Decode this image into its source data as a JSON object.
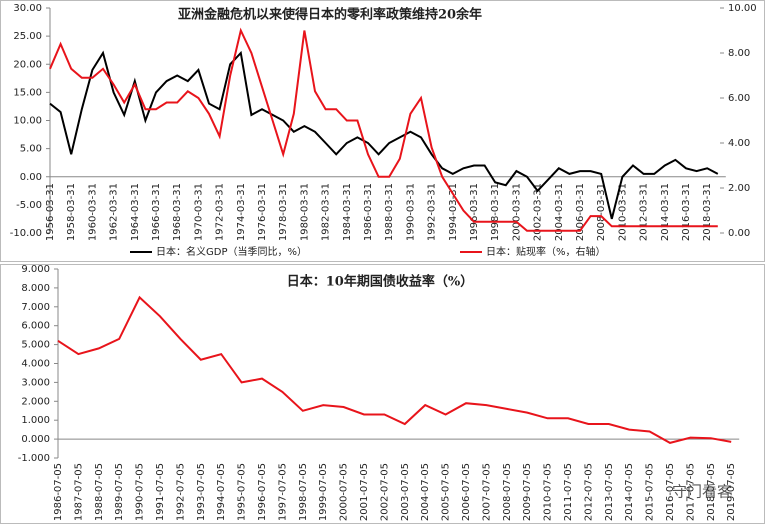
{
  "chart_data": [
    {
      "type": "line",
      "title": "亚洲金融危机以来使得日本的零利率政策维持20余年",
      "categories": [
        "1956-03-31",
        null,
        "1958-03-31",
        null,
        "1960-03-31",
        null,
        "1962-03-31",
        null,
        "1964-03-31",
        null,
        "1966-03-31",
        null,
        "1968-03-31",
        null,
        "1970-03-31",
        null,
        "1972-03-31",
        null,
        "1974-03-31",
        null,
        "1976-03-31",
        null,
        "1978-03-31",
        null,
        "1980-03-31",
        null,
        "1982-03-31",
        null,
        "1984-03-31",
        null,
        "1986-03-31",
        null,
        "1988-03-31",
        null,
        "1990-03-31",
        null,
        "1992-03-31",
        null,
        "1994-03-31",
        null,
        "1996-03-31",
        null,
        "1998-03-31",
        null,
        "2000-03-31",
        null,
        "2002-03-31",
        null,
        "2004-03-31",
        null,
        "2006-03-31",
        null,
        "2008-03-31",
        null,
        "2010-03-31",
        null,
        "2012-03-31",
        null,
        "2014-03-31",
        null,
        "2016-03-31",
        null,
        "2018-03-31",
        null
      ],
      "series": [
        {
          "name": "日本：名义GDP（当季同比，%）",
          "color": "#000000",
          "values": [
            13,
            11.5,
            4,
            12,
            19,
            22,
            15,
            11,
            17,
            10,
            15,
            17,
            18,
            17,
            19,
            13,
            12,
            20,
            22,
            11,
            12,
            11,
            10,
            8,
            9,
            8,
            6,
            4,
            6,
            7,
            6,
            4,
            6,
            7,
            8,
            7,
            4,
            1.5,
            0.5,
            1.5,
            2,
            2,
            -1,
            -1.5,
            1,
            0,
            -2.5,
            -0.5,
            1.5,
            0.5,
            1,
            1,
            0.5,
            -7.5,
            0,
            2,
            0.5,
            0.5,
            2,
            3,
            1.5,
            1,
            1.5,
            0.5
          ]
        },
        {
          "name": "日本：贴现率（%，右轴）",
          "color": "#e8141b",
          "axis": "y2",
          "values": [
            7.3,
            8.4,
            7.3,
            6.9,
            6.9,
            7.3,
            6.6,
            5.8,
            6.6,
            5.5,
            5.5,
            5.8,
            5.8,
            6.3,
            6,
            5.3,
            4.3,
            7,
            9,
            8,
            6.5,
            5,
            3.5,
            5.3,
            9,
            6.3,
            5.5,
            5.5,
            5,
            5,
            3.5,
            2.5,
            2.5,
            3.3,
            5.3,
            6,
            3.8,
            2.5,
            1.75,
            1,
            0.5,
            0.5,
            0.5,
            0.5,
            0.5,
            0.1,
            0.1,
            0.1,
            0.1,
            0.1,
            0.1,
            0.75,
            0.75,
            0.3,
            0.3,
            0.3,
            0.3,
            0.3,
            0.3,
            0.3,
            0.3,
            0.3,
            0.3,
            0.3
          ]
        }
      ],
      "ylim": [
        -10,
        30
      ],
      "yticks": [
        {
          "value": -10,
          "label": "-10.00"
        },
        {
          "value": -5,
          "label": "-5.00"
        },
        {
          "value": 0,
          "label": "0.00"
        },
        {
          "value": 5,
          "label": "5.00"
        },
        {
          "value": 10,
          "label": "10.00"
        },
        {
          "value": 15,
          "label": "15.00"
        },
        {
          "value": 20,
          "label": "20.00"
        },
        {
          "value": 25,
          "label": "25.00"
        },
        {
          "value": 30,
          "label": "30.00"
        }
      ],
      "y2lim": [
        0,
        10
      ],
      "y2ticks": [
        {
          "value": 0,
          "label": "0.00"
        },
        {
          "value": 2,
          "label": "2.00"
        },
        {
          "value": 4,
          "label": "4.00"
        },
        {
          "value": 6,
          "label": "6.00"
        },
        {
          "value": 8,
          "label": "8.00"
        },
        {
          "value": 10,
          "label": "10.00"
        }
      ],
      "legend": "bottom"
    },
    {
      "type": "line",
      "title": "日本：10年期国债收益率（%）",
      "categories": [
        "1986-07-05",
        "1987-07-05",
        "1988-07-05",
        "1989-07-05",
        "1990-07-05",
        "1991-07-05",
        "1992-07-05",
        "1993-07-05",
        "1994-07-05",
        "1995-07-05",
        "1996-07-05",
        "1997-07-05",
        "1998-07-05",
        "1999-07-05",
        "2000-07-05",
        "2001-07-05",
        "2002-07-05",
        "2003-07-05",
        "2004-07-05",
        "2005-07-05",
        "2006-07-05",
        "2007-07-05",
        "2008-07-05",
        "2009-07-05",
        "2010-07-05",
        "2011-07-05",
        "2012-07-05",
        "2013-07-05",
        "2014-07-05",
        "2015-07-05",
        "2016-07-05",
        "2017-07-05",
        "2018-07-05",
        "2019-07-05"
      ],
      "series": [
        {
          "color": "#e8141b",
          "values": [
            5.2,
            4.5,
            4.8,
            5.3,
            7.5,
            6.5,
            5.3,
            4.2,
            4.5,
            3,
            3.2,
            2.5,
            1.5,
            1.8,
            1.7,
            1.3,
            1.3,
            0.8,
            1.8,
            1.3,
            1.9,
            1.8,
            1.6,
            1.4,
            1.1,
            1.1,
            0.8,
            0.8,
            0.5,
            0.4,
            -0.2,
            0.08,
            0.05,
            -0.15
          ]
        }
      ],
      "ylim": [
        -1,
        9
      ],
      "yticks": [
        {
          "value": -1,
          "label": "-1.000"
        },
        {
          "value": 0,
          "label": "0.000"
        },
        {
          "value": 1,
          "label": "1.000"
        },
        {
          "value": 2,
          "label": "2.000"
        },
        {
          "value": 3,
          "label": "3.000"
        },
        {
          "value": 4,
          "label": "4.000"
        },
        {
          "value": 5,
          "label": "5.000"
        },
        {
          "value": 6,
          "label": "6.000"
        },
        {
          "value": 7,
          "label": "7.000"
        },
        {
          "value": 8,
          "label": "8.000"
        },
        {
          "value": 9,
          "label": "9.000"
        }
      ]
    }
  ],
  "watermark": "守门看客"
}
